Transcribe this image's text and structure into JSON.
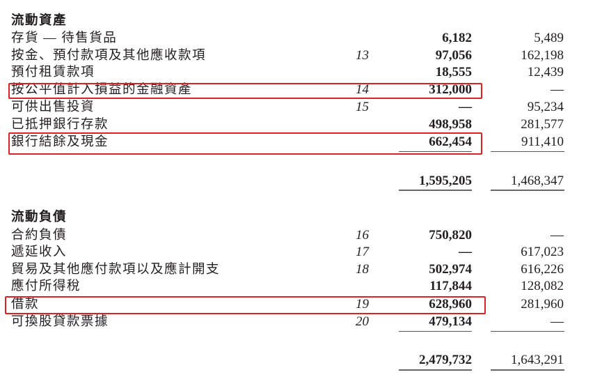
{
  "sections": [
    {
      "heading": "流動資產",
      "rows": [
        {
          "label": "存貨 — 待售貨品",
          "note": "",
          "current": "6,182",
          "prior": "5,489"
        },
        {
          "label": "按金、預付款項及其他應收款項",
          "note": "13",
          "current": "97,056",
          "prior": "162,198"
        },
        {
          "label": "預付租賃款項",
          "note": "",
          "current": "18,555",
          "prior": "12,439"
        },
        {
          "label": "按公平值計入損益的金融資產",
          "note": "14",
          "current": "312,000",
          "prior": "—",
          "highlighted": true
        },
        {
          "label": "可供出售投資",
          "note": "15",
          "current": "—",
          "prior": "95,234"
        },
        {
          "label": "已抵押銀行存款",
          "note": "",
          "current": "498,958",
          "prior": "281,577"
        },
        {
          "label": "銀行結餘及現金",
          "note": "",
          "current": "662,454",
          "prior": "911,410",
          "highlighted": true
        }
      ],
      "total": {
        "current": "1,595,205",
        "prior": "1,468,347"
      }
    },
    {
      "heading": "流動負債",
      "rows": [
        {
          "label": "合約負債",
          "note": "16",
          "current": "750,820",
          "prior": "—"
        },
        {
          "label": "遞延收入",
          "note": "17",
          "current": "—",
          "prior": "617,023"
        },
        {
          "label": "貿易及其他應付款項以及應計開支",
          "note": "18",
          "current": "502,974",
          "prior": "616,226"
        },
        {
          "label": "應付所得稅",
          "note": "",
          "current": "117,844",
          "prior": "128,082"
        },
        {
          "label": "借款",
          "note": "19",
          "current": "628,960",
          "prior": "281,960",
          "highlighted": true
        },
        {
          "label": "可換股貸款票據",
          "note": "20",
          "current": "479,134",
          "prior": "—"
        }
      ],
      "total": {
        "current": "2,479,732",
        "prior": "1,643,291"
      }
    }
  ],
  "highlight_color": "#e02020"
}
